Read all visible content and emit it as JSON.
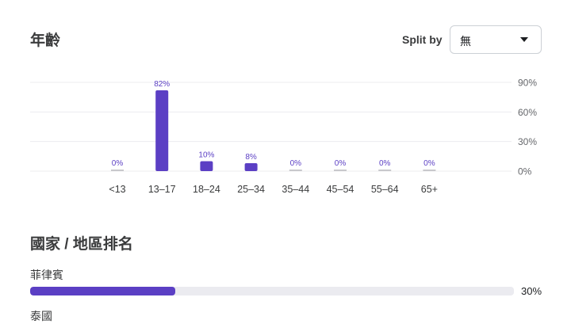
{
  "age_section": {
    "title": "年齡",
    "split_by_label": "Split by",
    "split_by_value": "無"
  },
  "chart_data": {
    "type": "bar",
    "categories": [
      "<13",
      "13–17",
      "18–24",
      "25–34",
      "35–44",
      "45–54",
      "55–64",
      "65+"
    ],
    "values": [
      0,
      82,
      10,
      8,
      0,
      0,
      0,
      0
    ],
    "data_labels": [
      "0%",
      "82%",
      "10%",
      "8%",
      "0%",
      "0%",
      "0%",
      "0%"
    ],
    "y_ticks": [
      "90%",
      "60%",
      "30%",
      "0%"
    ],
    "ylim": [
      0,
      90
    ],
    "grid": true,
    "color": "#5b3fc4",
    "zero_color": "#c8c8cc"
  },
  "geo_section": {
    "title": "國家 / 地區排名",
    "rows": [
      {
        "label": "菲律賓",
        "percent_label": "30%",
        "percent": 30
      },
      {
        "label": "泰國",
        "percent_label": "",
        "percent": null
      }
    ]
  }
}
